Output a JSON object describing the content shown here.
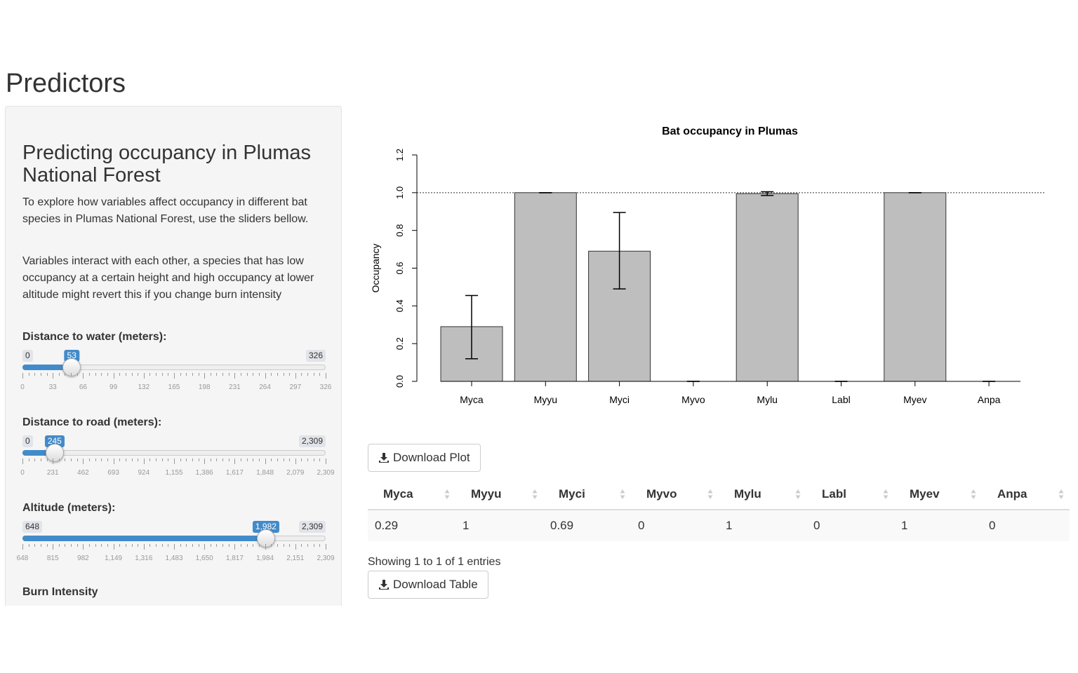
{
  "page": {
    "title": "Predictors"
  },
  "sidebar": {
    "heading": "Predicting occupancy in Plumas National Forest",
    "paragraphs": [
      "To explore how variables affect occupancy in different bat species in Plumas National Forest, use the sliders bellow.",
      "Variables interact with each other, a species that has low occupancy at a certain height and high occupancy at lower altitude might revert this if you change burn intensity"
    ],
    "sliders": [
      {
        "label": "Distance to water (meters):",
        "min": 0,
        "max": 326,
        "value": 53,
        "min_label": "0",
        "max_label": "326",
        "value_label": "53",
        "tick_labels": [
          "0",
          "33",
          "66",
          "99",
          "132",
          "165",
          "198",
          "231",
          "264",
          "297",
          "326"
        ]
      },
      {
        "label": "Distance to road (meters):",
        "min": 0,
        "max": 2309,
        "value": 245,
        "min_label": "0",
        "max_label": "2,309",
        "value_label": "245",
        "tick_labels": [
          "0",
          "231",
          "462",
          "693",
          "924",
          "1,155",
          "1,386",
          "1,617",
          "1,848",
          "2,079",
          "2,309"
        ]
      },
      {
        "label": "Altitude (meters):",
        "min": 648,
        "max": 2309,
        "value": 1982,
        "min_label": "648",
        "max_label": "2,309",
        "value_label": "1,982",
        "tick_labels": [
          "648",
          "815",
          "982",
          "1,149",
          "1,316",
          "1,483",
          "1,650",
          "1,817",
          "1,984",
          "2,151",
          "2,309"
        ]
      }
    ],
    "burn_label": "Burn Intensity"
  },
  "chart_data": {
    "type": "bar",
    "title": "Bat occupancy in Plumas",
    "ylabel": "Occupancy",
    "xlabel": "",
    "categories": [
      "Myca",
      "Myyu",
      "Myci",
      "Myvo",
      "Mylu",
      "Labl",
      "Myev",
      "Anpa"
    ],
    "values": [
      0.29,
      1.0,
      0.69,
      0.0,
      0.995,
      0.0,
      1.0,
      0.0
    ],
    "error_low": [
      0.12,
      1.0,
      0.49,
      0.0,
      0.985,
      0.0,
      1.0,
      0.0
    ],
    "error_high": [
      0.455,
      1.0,
      0.895,
      0.0,
      1.005,
      0.0,
      1.0,
      0.0
    ],
    "ylim": [
      0,
      1.2
    ],
    "yticks": [
      "0.0",
      "0.2",
      "0.4",
      "0.6",
      "0.8",
      "1.0",
      "1.2"
    ],
    "reference_line": 1.0,
    "bar_color": "#bebebe"
  },
  "buttons": {
    "download_plot": "Download Plot",
    "download_table": "Download Table"
  },
  "table": {
    "columns": [
      "Myca",
      "Myyu",
      "Myci",
      "Myvo",
      "Mylu",
      "Labl",
      "Myev",
      "Anpa"
    ],
    "rows": [
      [
        "0.29",
        "1",
        "0.69",
        "0",
        "1",
        "0",
        "1",
        "0"
      ]
    ],
    "info": "Showing 1 to 1 of 1 entries"
  },
  "colors": {
    "accent": "#428bca",
    "panel_bg": "#f5f5f5"
  }
}
